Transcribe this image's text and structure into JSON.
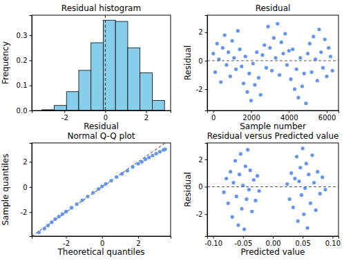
{
  "chart_data": [
    {
      "type": "histogram",
      "title": "Residual histogram",
      "x_label": "Residual",
      "y_label": "Frequency",
      "bins": [
        -3.1,
        -2.5,
        -1.9,
        -1.3,
        -0.7,
        -0.1,
        0.5,
        1.1,
        1.7,
        2.3,
        2.9
      ],
      "values": [
        0.003,
        0.02,
        0.075,
        0.16,
        0.27,
        0.36,
        0.355,
        0.25,
        0.15,
        0.04
      ],
      "color": "#87ceeb",
      "vline": 0,
      "xlim": [
        -3.6,
        3.2
      ],
      "xticks": [
        -2,
        0,
        2
      ],
      "ylim": [
        0,
        0.38
      ],
      "yticks": [
        {
          "value": 0,
          "label": "0.0"
        },
        0.1,
        0.2,
        0.3
      ]
    },
    {
      "type": "scatter",
      "title": "Residual",
      "x_label": "Sample number",
      "y_label": "Residual",
      "x": [
        0,
        100,
        200,
        300,
        400,
        500,
        600,
        700,
        800,
        900,
        1000,
        1100,
        1200,
        1300,
        1400,
        1500,
        1600,
        1700,
        1800,
        1900,
        2000,
        2100,
        2200,
        2300,
        2400,
        2500,
        2600,
        2700,
        2800,
        2900,
        3000,
        3100,
        3200,
        3300,
        3400,
        3500,
        3600,
        3700,
        3800,
        3900,
        4000,
        4100,
        4200,
        4300,
        4400,
        4500,
        4600,
        4700,
        4800,
        4900,
        5000,
        5100,
        5200,
        5300,
        5400,
        5500,
        5600,
        5700,
        5800,
        5900,
        6000,
        6100,
        6200,
        6300
      ],
      "values": [
        0.5,
        -0.8,
        1.2,
        0.1,
        -1.5,
        0.9,
        1.8,
        -0.3,
        0.6,
        -1.1,
        1.4,
        0.2,
        -0.6,
        2.1,
        0.8,
        -0.4,
        -1.6,
        0.3,
        -2.2,
        -0.9,
        -2.8,
        -0.2,
        -1.7,
        0.6,
        -1.2,
        -2.4,
        0.4,
        1.1,
        -0.5,
        2.4,
        0.9,
        -0.7,
        1.6,
        0.2,
        2.6,
        -1.0,
        1.3,
        0.5,
        1.9,
        -0.3,
        0.7,
        -1.3,
        0.8,
        -2.0,
        -0.6,
        -2.6,
        0.2,
        -1.8,
        -0.9,
        -3.0,
        0.5,
        1.2,
        -0.8,
        1.7,
        0.1,
        -1.4,
        2.2,
        0.6,
        -0.5,
        1.5,
        -1.1,
        0.9,
        0.3,
        -0.7
      ],
      "color": "#6495ed",
      "hline": 0,
      "xlim": [
        -320,
        6620
      ],
      "xticks": [
        0,
        2000,
        4000,
        6000
      ],
      "ylim": [
        -3.5,
        3.2
      ],
      "yticks": [
        -2,
        0,
        2
      ]
    },
    {
      "type": "scatter",
      "title": "Normal Q-Q plot",
      "x_label": "Theoretical quantiles",
      "y_label": "Sample quantiles",
      "x": [
        -3.5,
        -3.2,
        -3.0,
        -2.8,
        -2.6,
        -2.4,
        -2.2,
        -2.0,
        -1.7,
        -1.4,
        -1.1,
        -0.8,
        -0.5,
        -0.2,
        0,
        0.2,
        0.5,
        0.8,
        1.1,
        1.4,
        1.7,
        2.0,
        2.2,
        2.4,
        2.6,
        2.8,
        3.0,
        3.2,
        3.4,
        3.5
      ],
      "values": [
        -3.6,
        -3.3,
        -3.05,
        -2.8,
        -2.55,
        -2.35,
        -2.15,
        -1.95,
        -1.65,
        -1.35,
        -1.05,
        -0.75,
        -0.45,
        -0.15,
        0.05,
        0.25,
        0.5,
        0.8,
        1.05,
        1.3,
        1.6,
        1.85,
        2.0,
        2.2,
        2.35,
        2.5,
        2.65,
        2.8,
        2.95,
        3.0
      ],
      "color": "#6495ed",
      "reference_line": {
        "x": [
          -3.9,
          3.8
        ],
        "y": [
          -3.9,
          3.8
        ]
      },
      "xlim": [
        -3.9,
        3.8
      ],
      "xticks": [
        -2,
        0,
        2
      ],
      "ylim": [
        -3.9,
        3.5
      ],
      "yticks": [
        -2,
        0,
        2
      ]
    },
    {
      "type": "scatter",
      "title": "Residual versus Predicted value",
      "x_label": "Predicted value",
      "y_label": "Residual",
      "x": [
        -0.082,
        -0.078,
        -0.075,
        -0.071,
        -0.068,
        -0.066,
        -0.063,
        -0.061,
        -0.058,
        -0.056,
        -0.054,
        -0.052,
        -0.05,
        -0.048,
        -0.046,
        -0.044,
        -0.042,
        -0.04,
        -0.038,
        -0.035,
        -0.032,
        -0.029,
        -0.026,
        -0.023,
        0.024,
        0.028,
        0.031,
        0.034,
        0.037,
        0.04,
        0.042,
        0.044,
        0.046,
        0.048,
        0.05,
        0.052,
        0.054,
        0.056,
        0.058,
        0.06,
        0.063,
        0.066,
        0.069,
        0.072,
        0.075,
        0.079,
        0.083,
        0.088
      ],
      "values": [
        -0.4,
        0.6,
        -1.2,
        1.1,
        -2.2,
        0.3,
        1.9,
        -0.7,
        -2.8,
        0.9,
        2.4,
        -1.6,
        0.1,
        -3.1,
        1.5,
        -0.9,
        2.7,
        -0.2,
        1.2,
        -1.8,
        0.5,
        -1.0,
        0.8,
        -0.3,
        0.2,
        -0.9,
        1.0,
        -1.5,
        0.6,
        2.2,
        -2.5,
        0.4,
        1.4,
        -0.6,
        2.8,
        -2.0,
        -0.1,
        1.7,
        -3.0,
        0.9,
        -1.2,
        2.3,
        0.3,
        -1.7,
        1.1,
        -0.5,
        0.7,
        -0.2
      ],
      "color": "#6495ed",
      "hline": 0,
      "xlim": [
        -0.11,
        0.11
      ],
      "xticks": [
        {
          "value": -0.1,
          "label": "-0.10"
        },
        -0.05,
        {
          "value": 0,
          "label": "0.00"
        },
        0.05,
        {
          "value": 0.1,
          "label": "0.10"
        }
      ],
      "ylim": [
        -3.6,
        3.2
      ],
      "yticks": [
        -2,
        0,
        2
      ]
    }
  ]
}
